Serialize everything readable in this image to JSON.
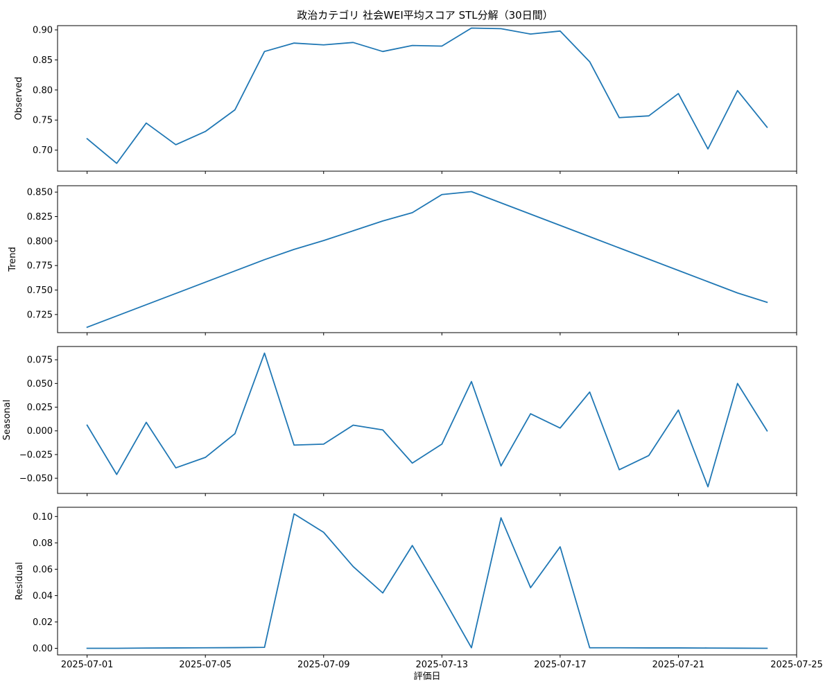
{
  "chart_data": {
    "type": "line",
    "title": "政治カテゴリ 社会WEI平均スコア STL分解（30日間）",
    "xlabel": "評価日",
    "line_color": "#1f77b4",
    "x": [
      "2025-07-01",
      "2025-07-02",
      "2025-07-03",
      "2025-07-04",
      "2025-07-05",
      "2025-07-06",
      "2025-07-07",
      "2025-07-08",
      "2025-07-09",
      "2025-07-10",
      "2025-07-11",
      "2025-07-12",
      "2025-07-13",
      "2025-07-14",
      "2025-07-15",
      "2025-07-16",
      "2025-07-17",
      "2025-07-18",
      "2025-07-19",
      "2025-07-20",
      "2025-07-21",
      "2025-07-22",
      "2025-07-23",
      "2025-07-24"
    ],
    "xlim": [
      "2025-06-30",
      "2025-07-25"
    ],
    "xticks": [
      "2025-07-01",
      "2025-07-05",
      "2025-07-09",
      "2025-07-13",
      "2025-07-17",
      "2025-07-21",
      "2025-07-25"
    ],
    "panels": [
      {
        "ylabel": "Observed",
        "ylim": [
          0.665,
          0.907
        ],
        "yticks": [
          "0.70",
          "0.75",
          "0.80",
          "0.85",
          "0.90"
        ],
        "values": [
          0.719,
          0.678,
          0.745,
          0.709,
          0.731,
          0.767,
          0.864,
          0.878,
          0.875,
          0.879,
          0.864,
          0.874,
          0.873,
          0.903,
          0.902,
          0.893,
          0.898,
          0.847,
          0.754,
          0.757,
          0.794,
          0.702,
          0.799,
          0.738
        ]
      },
      {
        "ylabel": "Trend",
        "ylim": [
          0.7065,
          0.8565
        ],
        "yticks": [
          "0.725",
          "0.750",
          "0.775",
          "0.800",
          "0.825",
          "0.850"
        ],
        "values": [
          0.712,
          0.7235,
          0.735,
          0.7465,
          0.758,
          0.7695,
          0.781,
          0.7915,
          0.8005,
          0.8105,
          0.8205,
          0.829,
          0.8475,
          0.8505,
          0.839,
          0.8275,
          0.816,
          0.8045,
          0.793,
          0.7815,
          0.77,
          0.7585,
          0.747,
          0.7375
        ]
      },
      {
        "ylabel": "Seasonal",
        "ylim": [
          -0.066,
          0.089
        ],
        "yticks": [
          "−0.050",
          "−0.025",
          "0.000",
          "0.025",
          "0.050",
          "0.075"
        ],
        "values": [
          0.006,
          -0.046,
          0.009,
          -0.039,
          -0.028,
          -0.003,
          0.082,
          -0.015,
          -0.014,
          0.006,
          0.001,
          -0.034,
          -0.014,
          0.052,
          -0.037,
          0.018,
          0.003,
          0.041,
          -0.041,
          -0.026,
          0.022,
          -0.059,
          0.05,
          0.0
        ]
      },
      {
        "ylabel": "Residual",
        "ylim": [
          -0.005,
          0.107
        ],
        "yticks": [
          "0.00",
          "0.02",
          "0.04",
          "0.06",
          "0.08",
          "0.10"
        ],
        "values": [
          0.0,
          0.0,
          0.0002,
          0.0003,
          0.0004,
          0.0005,
          0.0007,
          0.102,
          0.088,
          0.062,
          0.042,
          0.078,
          0.04,
          0.0004,
          0.099,
          0.046,
          0.077,
          0.0004,
          0.0004,
          0.0003,
          0.0003,
          0.0002,
          0.0001,
          0.0
        ]
      }
    ]
  }
}
